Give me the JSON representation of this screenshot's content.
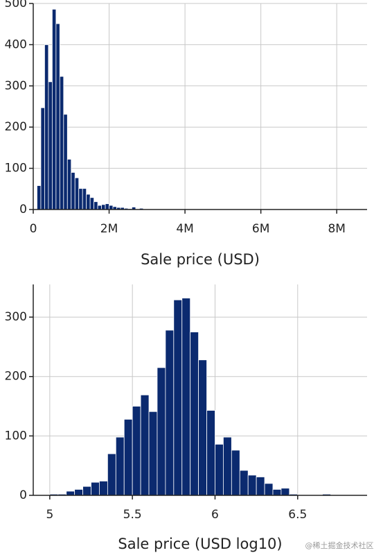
{
  "chart_data": [
    {
      "type": "histogram",
      "x_label": "Sale price (USD)",
      "color": "#0b2a6f",
      "grid": true,
      "bins": [
        100000,
        200000,
        300000,
        400000,
        500000,
        600000,
        700000,
        800000,
        900000,
        1000000,
        1100000,
        1200000,
        1300000,
        1400000,
        1500000,
        1600000,
        1700000,
        1800000,
        1900000,
        2000000,
        2100000,
        2200000,
        2300000,
        2400000,
        2500000,
        2600000,
        2700000,
        2800000,
        2900000
      ],
      "values": [
        58,
        247,
        400,
        310,
        486,
        451,
        323,
        231,
        122,
        90,
        77,
        51,
        51,
        37,
        29,
        19,
        10,
        12,
        14,
        10,
        7,
        5,
        5,
        3,
        2,
        6,
        0,
        3
      ],
      "xlim": [
        0,
        8800000
      ],
      "xticks": [
        0,
        {
          "value": 2000000,
          "label": "2M"
        },
        {
          "value": 4000000,
          "label": "4M"
        },
        {
          "value": 6000000,
          "label": "6M"
        },
        {
          "value": 8000000,
          "label": "8M"
        }
      ],
      "ylim": [
        0,
        500
      ],
      "yticks": [
        0,
        100,
        200,
        300,
        400,
        500
      ]
    },
    {
      "type": "histogram",
      "x_label": "Sale price (USD log10)",
      "color": "#0b2a6f",
      "grid": true,
      "bins": [
        5.0,
        5.05,
        5.1,
        5.15,
        5.2,
        5.25,
        5.3,
        5.35,
        5.4,
        5.45,
        5.5,
        5.55,
        5.6,
        5.65,
        5.7,
        5.75,
        5.8,
        5.85,
        5.9,
        5.95,
        6.0,
        6.05,
        6.1,
        6.15,
        6.2,
        6.25,
        6.3,
        6.35,
        6.4,
        6.45,
        6.5,
        6.55,
        6.6,
        6.65,
        6.7
      ],
      "values": [
        2,
        2,
        7,
        10,
        15,
        22,
        24,
        70,
        98,
        128,
        150,
        169,
        141,
        215,
        278,
        329,
        332,
        275,
        228,
        143,
        86,
        98,
        76,
        42,
        34,
        31,
        20,
        10,
        12,
        2,
        1,
        1,
        0,
        2
      ],
      "xlim": [
        4.9,
        6.92
      ],
      "xticks": [
        5,
        5.5,
        6,
        6.5
      ],
      "ylim": [
        0,
        355
      ],
      "yticks": [
        0,
        100,
        200,
        300
      ]
    }
  ],
  "watermark": "@稀土掘金技术社区"
}
